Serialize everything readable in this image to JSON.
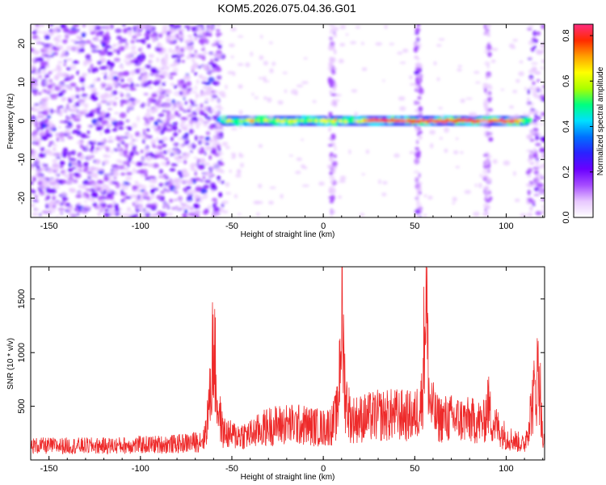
{
  "title": "KOM5.2026.075.04.36.G01",
  "chart_data": [
    {
      "type": "heatmap",
      "title": "KOM5.2026.075.04.36.G01",
      "xlabel": "Height of straight line (km)",
      "ylabel": "Frequency (Hz)",
      "xlim": [
        -160,
        121
      ],
      "ylim": [
        -25,
        25
      ],
      "xticks": [
        -150,
        -100,
        -50,
        0,
        50,
        100
      ],
      "yticks": [
        -20,
        -10,
        0,
        10,
        20
      ],
      "colorbar": {
        "label": "Normalized spectral amplitude",
        "range": [
          0,
          0.85
        ],
        "ticks": [
          0.0,
          0.2,
          0.4,
          0.6,
          0.8
        ],
        "colors": [
          "#ffffff",
          "#e8c8ff",
          "#a64dff",
          "#6a00ff",
          "#2a22ff",
          "#0070ff",
          "#00e0ff",
          "#00ff80",
          "#aaff00",
          "#ffff00",
          "#ffa000",
          "#ff2a00",
          "#ff2c80"
        ]
      },
      "features": [
        {
          "kind": "noise",
          "x_range": [
            -160,
            -55
          ],
          "y_range": [
            -25,
            25
          ],
          "level": 0.15
        },
        {
          "kind": "noise",
          "x_range": [
            112,
            121
          ],
          "y_range": [
            -25,
            25
          ],
          "level": 0.12
        },
        {
          "kind": "vertical-stripe",
          "x": 5,
          "level": 0.1
        },
        {
          "kind": "vertical-stripe",
          "x": 52,
          "level": 0.12
        },
        {
          "kind": "vertical-stripe",
          "x": 90,
          "level": 0.1
        },
        {
          "kind": "line",
          "x_range": [
            -57,
            113
          ],
          "y": 0,
          "level": 0.8
        }
      ]
    },
    {
      "type": "line",
      "xlabel": "Height of straight line (km)",
      "ylabel": "SNR (10 * v/v)",
      "xlim": [
        -160,
        121
      ],
      "ylim": [
        0,
        1800
      ],
      "xticks": [
        -150,
        -100,
        -50,
        0,
        50,
        100
      ],
      "yticks": [
        500,
        1000,
        1500
      ],
      "color": "#ee2a2a",
      "x": [
        -160,
        -140,
        -120,
        -100,
        -80,
        -70,
        -65,
        -62,
        -60,
        -58,
        -55,
        -50,
        -40,
        -30,
        -20,
        -10,
        0,
        5,
        8,
        10,
        12,
        15,
        20,
        30,
        40,
        50,
        54,
        56,
        58,
        62,
        70,
        80,
        88,
        90,
        92,
        96,
        100,
        110,
        118,
        120
      ],
      "y": [
        150,
        150,
        150,
        160,
        170,
        190,
        230,
        650,
        1300,
        600,
        300,
        260,
        270,
        360,
        380,
        370,
        340,
        380,
        520,
        1610,
        700,
        430,
        440,
        470,
        480,
        460,
        640,
        1800,
        620,
        440,
        440,
        420,
        400,
        610,
        420,
        330,
        250,
        160,
        980,
        190
      ]
    }
  ]
}
